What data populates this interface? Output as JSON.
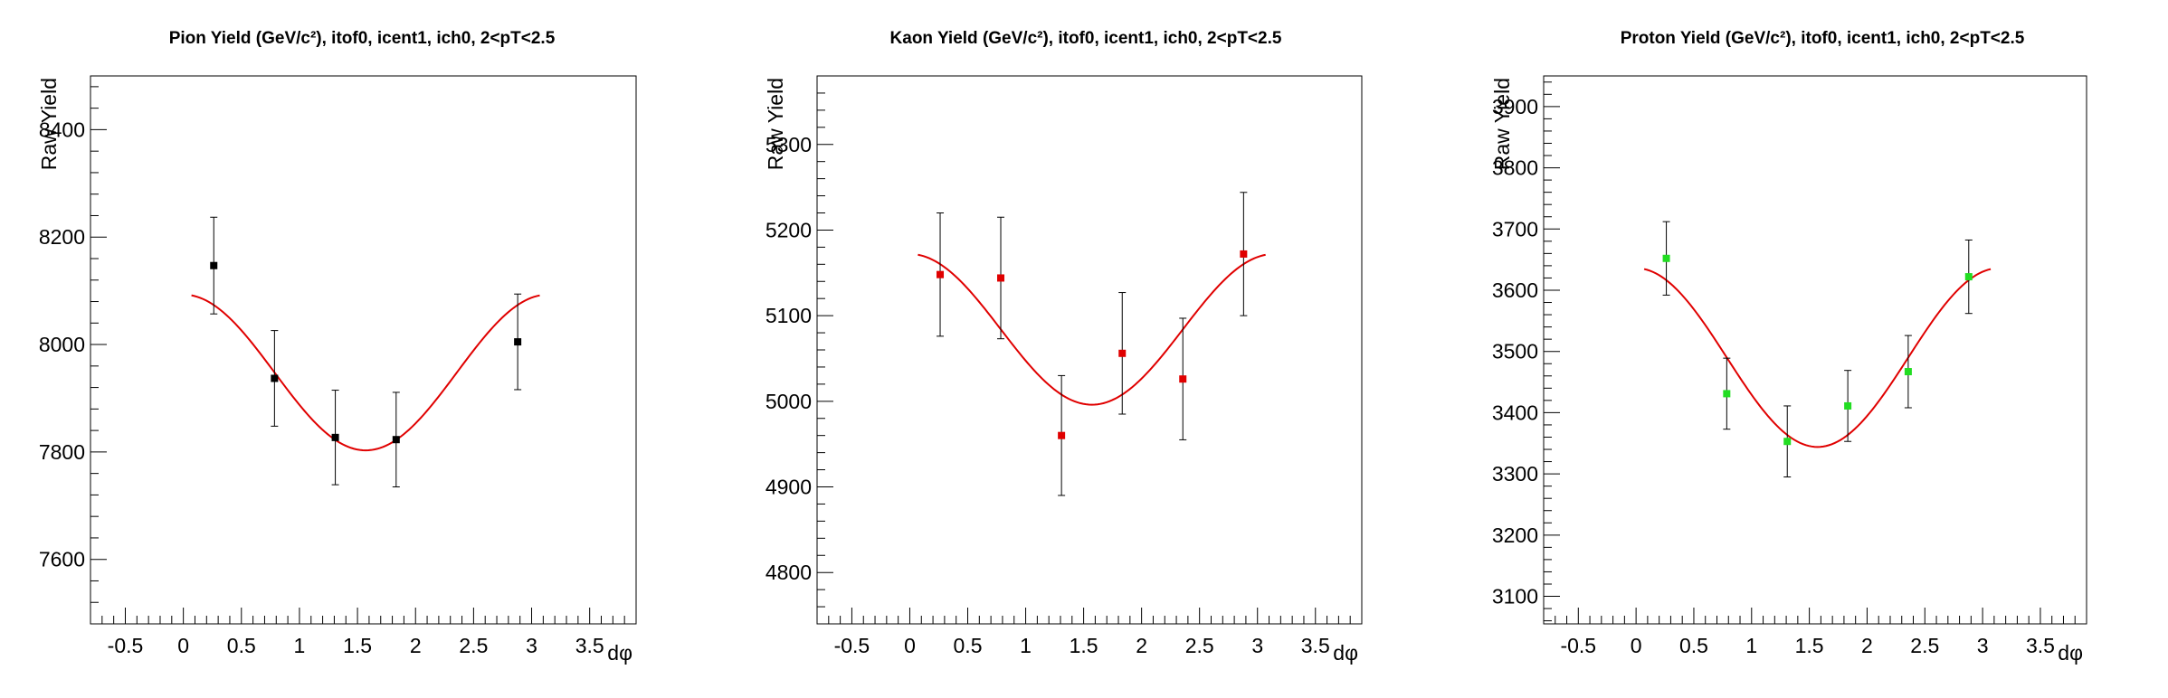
{
  "chart_data": [
    {
      "type": "scatter",
      "title": "Pion Yield (GeV/c²), itof0, icent1, ich0, 2<pT<2.5",
      "xlabel": "dφ",
      "ylabel": "Raw Yield",
      "xlim": [
        -0.8,
        3.9
      ],
      "ylim": [
        7480,
        8500
      ],
      "xticks": [
        -0.5,
        0,
        0.5,
        1,
        1.5,
        2,
        2.5,
        3,
        3.5
      ],
      "xtick_labels": [
        "-0.5",
        "0",
        "0.5",
        "1",
        "1.5",
        "2",
        "2.5",
        "3",
        "3.5"
      ],
      "yticks": [
        7600,
        7800,
        8000,
        8200,
        8400
      ],
      "ytick_labels": [
        "7600",
        "7800",
        "8000",
        "8200",
        "8400"
      ],
      "grid": false,
      "marker_color": "#000000",
      "fit_color": "#e00000",
      "points": [
        {
          "x": 0.262,
          "y": 8147,
          "err": 90
        },
        {
          "x": 0.785,
          "y": 7937,
          "err": 89
        },
        {
          "x": 1.309,
          "y": 7827,
          "err": 88
        },
        {
          "x": 1.833,
          "y": 7823,
          "err": 88
        },
        {
          "x": 2.88,
          "y": 8005,
          "err": 89
        }
      ],
      "fit": {
        "A": 7948,
        "B": 145,
        "x_range": [
          0.07,
          3.07
        ]
      }
    },
    {
      "type": "scatter",
      "title": "Kaon Yield (GeV/c²), itof0, icent1, ich0, 2<pT<2.5",
      "xlabel": "dφ",
      "ylabel": "Raw Yield",
      "xlim": [
        -0.8,
        3.9
      ],
      "ylim": [
        4740,
        5380
      ],
      "xticks": [
        -0.5,
        0,
        0.5,
        1,
        1.5,
        2,
        2.5,
        3,
        3.5
      ],
      "xtick_labels": [
        "-0.5",
        "0",
        "0.5",
        "1",
        "1.5",
        "2",
        "2.5",
        "3",
        "3.5"
      ],
      "yticks": [
        4800,
        4900,
        5000,
        5100,
        5200,
        5300
      ],
      "ytick_labels": [
        "4800",
        "4900",
        "5000",
        "5100",
        "5200",
        "5300"
      ],
      "grid": false,
      "marker_color": "#e00000",
      "fit_color": "#e00000",
      "points": [
        {
          "x": 0.262,
          "y": 5148,
          "err": 72
        },
        {
          "x": 0.785,
          "y": 5144,
          "err": 71
        },
        {
          "x": 1.309,
          "y": 4960,
          "err": 70
        },
        {
          "x": 1.833,
          "y": 5056,
          "err": 71
        },
        {
          "x": 2.356,
          "y": 5026,
          "err": 71
        },
        {
          "x": 2.88,
          "y": 5172,
          "err": 72
        }
      ],
      "fit": {
        "A": 5084,
        "B": 88,
        "x_range": [
          0.07,
          3.07
        ]
      }
    },
    {
      "type": "scatter",
      "title": "Proton Yield (GeV/c²), itof0, icent1, ich0, 2<pT<2.5",
      "xlabel": "dφ",
      "ylabel": "Raw Yield",
      "xlim": [
        -0.8,
        3.9
      ],
      "ylim": [
        3055,
        3950
      ],
      "xticks": [
        -0.5,
        0,
        0.5,
        1,
        1.5,
        2,
        2.5,
        3,
        3.5
      ],
      "xtick_labels": [
        "-0.5",
        "0",
        "0.5",
        "1",
        "1.5",
        "2",
        "2.5",
        "3",
        "3.5"
      ],
      "yticks": [
        3100,
        3200,
        3300,
        3400,
        3500,
        3600,
        3700,
        3800,
        3900
      ],
      "ytick_labels": [
        "3100",
        "3200",
        "3300",
        "3400",
        "3500",
        "3600",
        "3700",
        "3800",
        "3900"
      ],
      "grid": false,
      "marker_color": "#22dd22",
      "fit_color": "#e00000",
      "points": [
        {
          "x": 0.262,
          "y": 3652,
          "err": 60
        },
        {
          "x": 0.785,
          "y": 3431,
          "err": 58
        },
        {
          "x": 1.309,
          "y": 3353,
          "err": 58
        },
        {
          "x": 1.833,
          "y": 3411,
          "err": 58
        },
        {
          "x": 2.356,
          "y": 3467,
          "err": 59
        },
        {
          "x": 2.88,
          "y": 3622,
          "err": 60
        }
      ],
      "fit": {
        "A": 3490,
        "B": 146,
        "x_range": [
          0.07,
          3.07
        ]
      }
    }
  ]
}
